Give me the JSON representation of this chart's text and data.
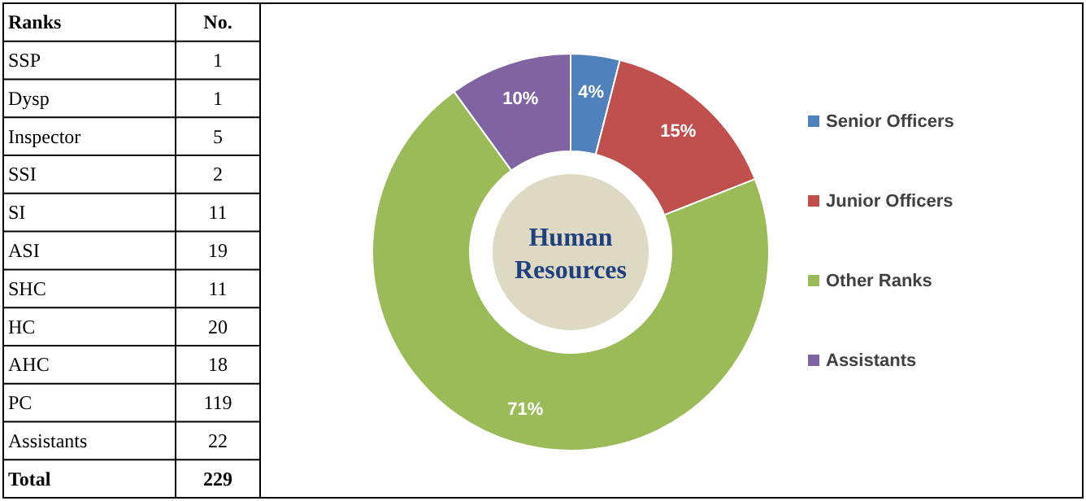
{
  "chart_data": [
    {
      "type": "other",
      "categories": [
        "SSP",
        "Dysp",
        "Inspector",
        "SSI",
        "SI",
        "ASI",
        "SHC",
        "HC",
        "AHC",
        "PC",
        "Assistants"
      ],
      "values": [
        1,
        1,
        5,
        2,
        11,
        19,
        11,
        20,
        18,
        119,
        22
      ],
      "xlabel": "Ranks",
      "ylabel": "No.",
      "data_labels": true,
      "annotations": [
        "Total",
        "229"
      ]
    },
    {
      "type": "donut",
      "categories": [
        "Senior Officers",
        "Junior Officers",
        "Other Ranks",
        "Assistants"
      ],
      "values": [
        4,
        15,
        71,
        10
      ],
      "colors": [
        "#4f81bd",
        "#c0504d",
        "#9bbb59",
        "#8064a2"
      ],
      "value_labels": [
        "4%",
        "15%",
        "71%",
        "10%"
      ],
      "legend": "right",
      "annotations": [
        "Human Resources"
      ]
    }
  ]
}
